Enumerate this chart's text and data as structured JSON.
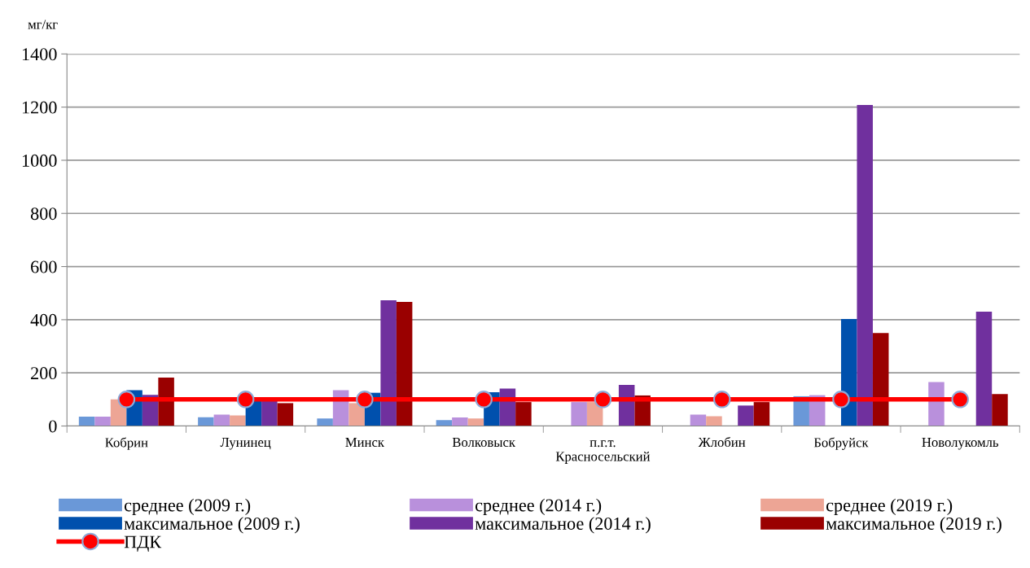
{
  "chart_data": {
    "type": "bar",
    "ylabel": "мг/кг",
    "categories": [
      "Кобрин",
      "Лунинец",
      "Минск",
      "Волковыск",
      "п.г.т.\nКрасносельский",
      "Жлобин",
      "Бобруйск",
      "Новолукомль"
    ],
    "series": [
      {
        "name": "среднее (2009 г.)",
        "color": "#6a98d8",
        "values": [
          35,
          33,
          28,
          22,
          null,
          null,
          112,
          null
        ]
      },
      {
        "name": "среднее (2014 г.)",
        "color": "#b990dc",
        "values": [
          35,
          43,
          135,
          32,
          90,
          43,
          116,
          165
        ]
      },
      {
        "name": "среднее (2019 г.)",
        "color": "#eda595",
        "values": [
          100,
          40,
          86,
          28,
          90,
          37,
          null,
          null
        ]
      },
      {
        "name": "максимальное (2009 г.)",
        "color": "#0050ad",
        "values": [
          135,
          95,
          125,
          127,
          null,
          null,
          403,
          null
        ]
      },
      {
        "name": "максимальное (2014 г.)",
        "color": "#70309e",
        "values": [
          117,
          95,
          473,
          141,
          155,
          77,
          1208,
          430
        ]
      },
      {
        "name": "максимальное (2019 г.)",
        "color": "#9a0000",
        "values": [
          182,
          86,
          467,
          90,
          115,
          90,
          350,
          120
        ]
      },
      {
        "name": "ПДК",
        "type": "line",
        "color": "#ff0000",
        "marker": "circle",
        "values": [
          100,
          100,
          100,
          100,
          100,
          100,
          100,
          100
        ]
      }
    ],
    "ylim": [
      0,
      1400
    ],
    "yticks": [
      0,
      200,
      400,
      600,
      800,
      1000,
      1200,
      1400
    ],
    "grid": "y",
    "legend": "bottom"
  }
}
